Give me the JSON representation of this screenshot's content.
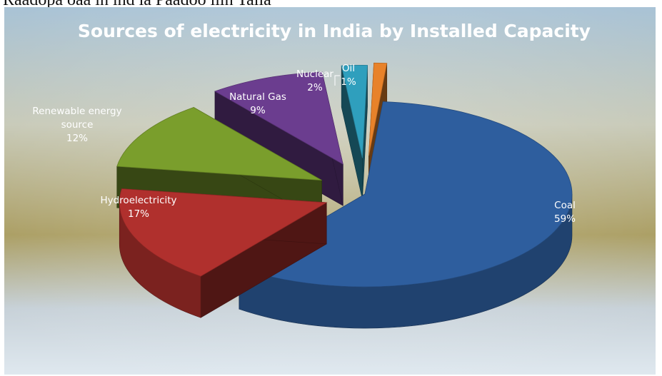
{
  "top_text": "Raadopa oaa in ind ia Paadoo iiin Talia",
  "chart_data": {
    "type": "pie",
    "title": "Sources of electricity in India by Installed Capacity",
    "slices": [
      {
        "name": "Coal",
        "name_lines": [
          "Coal"
        ],
        "value": 59,
        "value_label": "59%",
        "color": "#2e5e9e",
        "label_color": "#ffffff"
      },
      {
        "name": "Hydroelectricity",
        "name_lines": [
          "Hydroelectricity"
        ],
        "value": 17,
        "value_label": "17%",
        "color": "#b0302d",
        "label_color": "#ffffff"
      },
      {
        "name": "Renewable energy source",
        "name_lines": [
          "Renewable energy",
          "source"
        ],
        "value": 12,
        "value_label": "12%",
        "color": "#7a9e2c",
        "label_color": "#ffffff"
      },
      {
        "name": "Natural Gas",
        "name_lines": [
          "Natural Gas"
        ],
        "value": 9,
        "value_label": "9%",
        "color": "#6b3d8f",
        "label_color": "#ffffff"
      },
      {
        "name": "Nuclear",
        "name_lines": [
          "Nuclear"
        ],
        "value": 2,
        "value_label": "2%",
        "color": "#2f9fbd",
        "label_color": "#ffffff"
      },
      {
        "name": "Oil",
        "name_lines": [
          "Oil"
        ],
        "value": 1,
        "value_label": "1%",
        "color": "#e8822a",
        "label_color": "#ffffff"
      }
    ],
    "style": "3d-exploded",
    "legend": "none"
  }
}
